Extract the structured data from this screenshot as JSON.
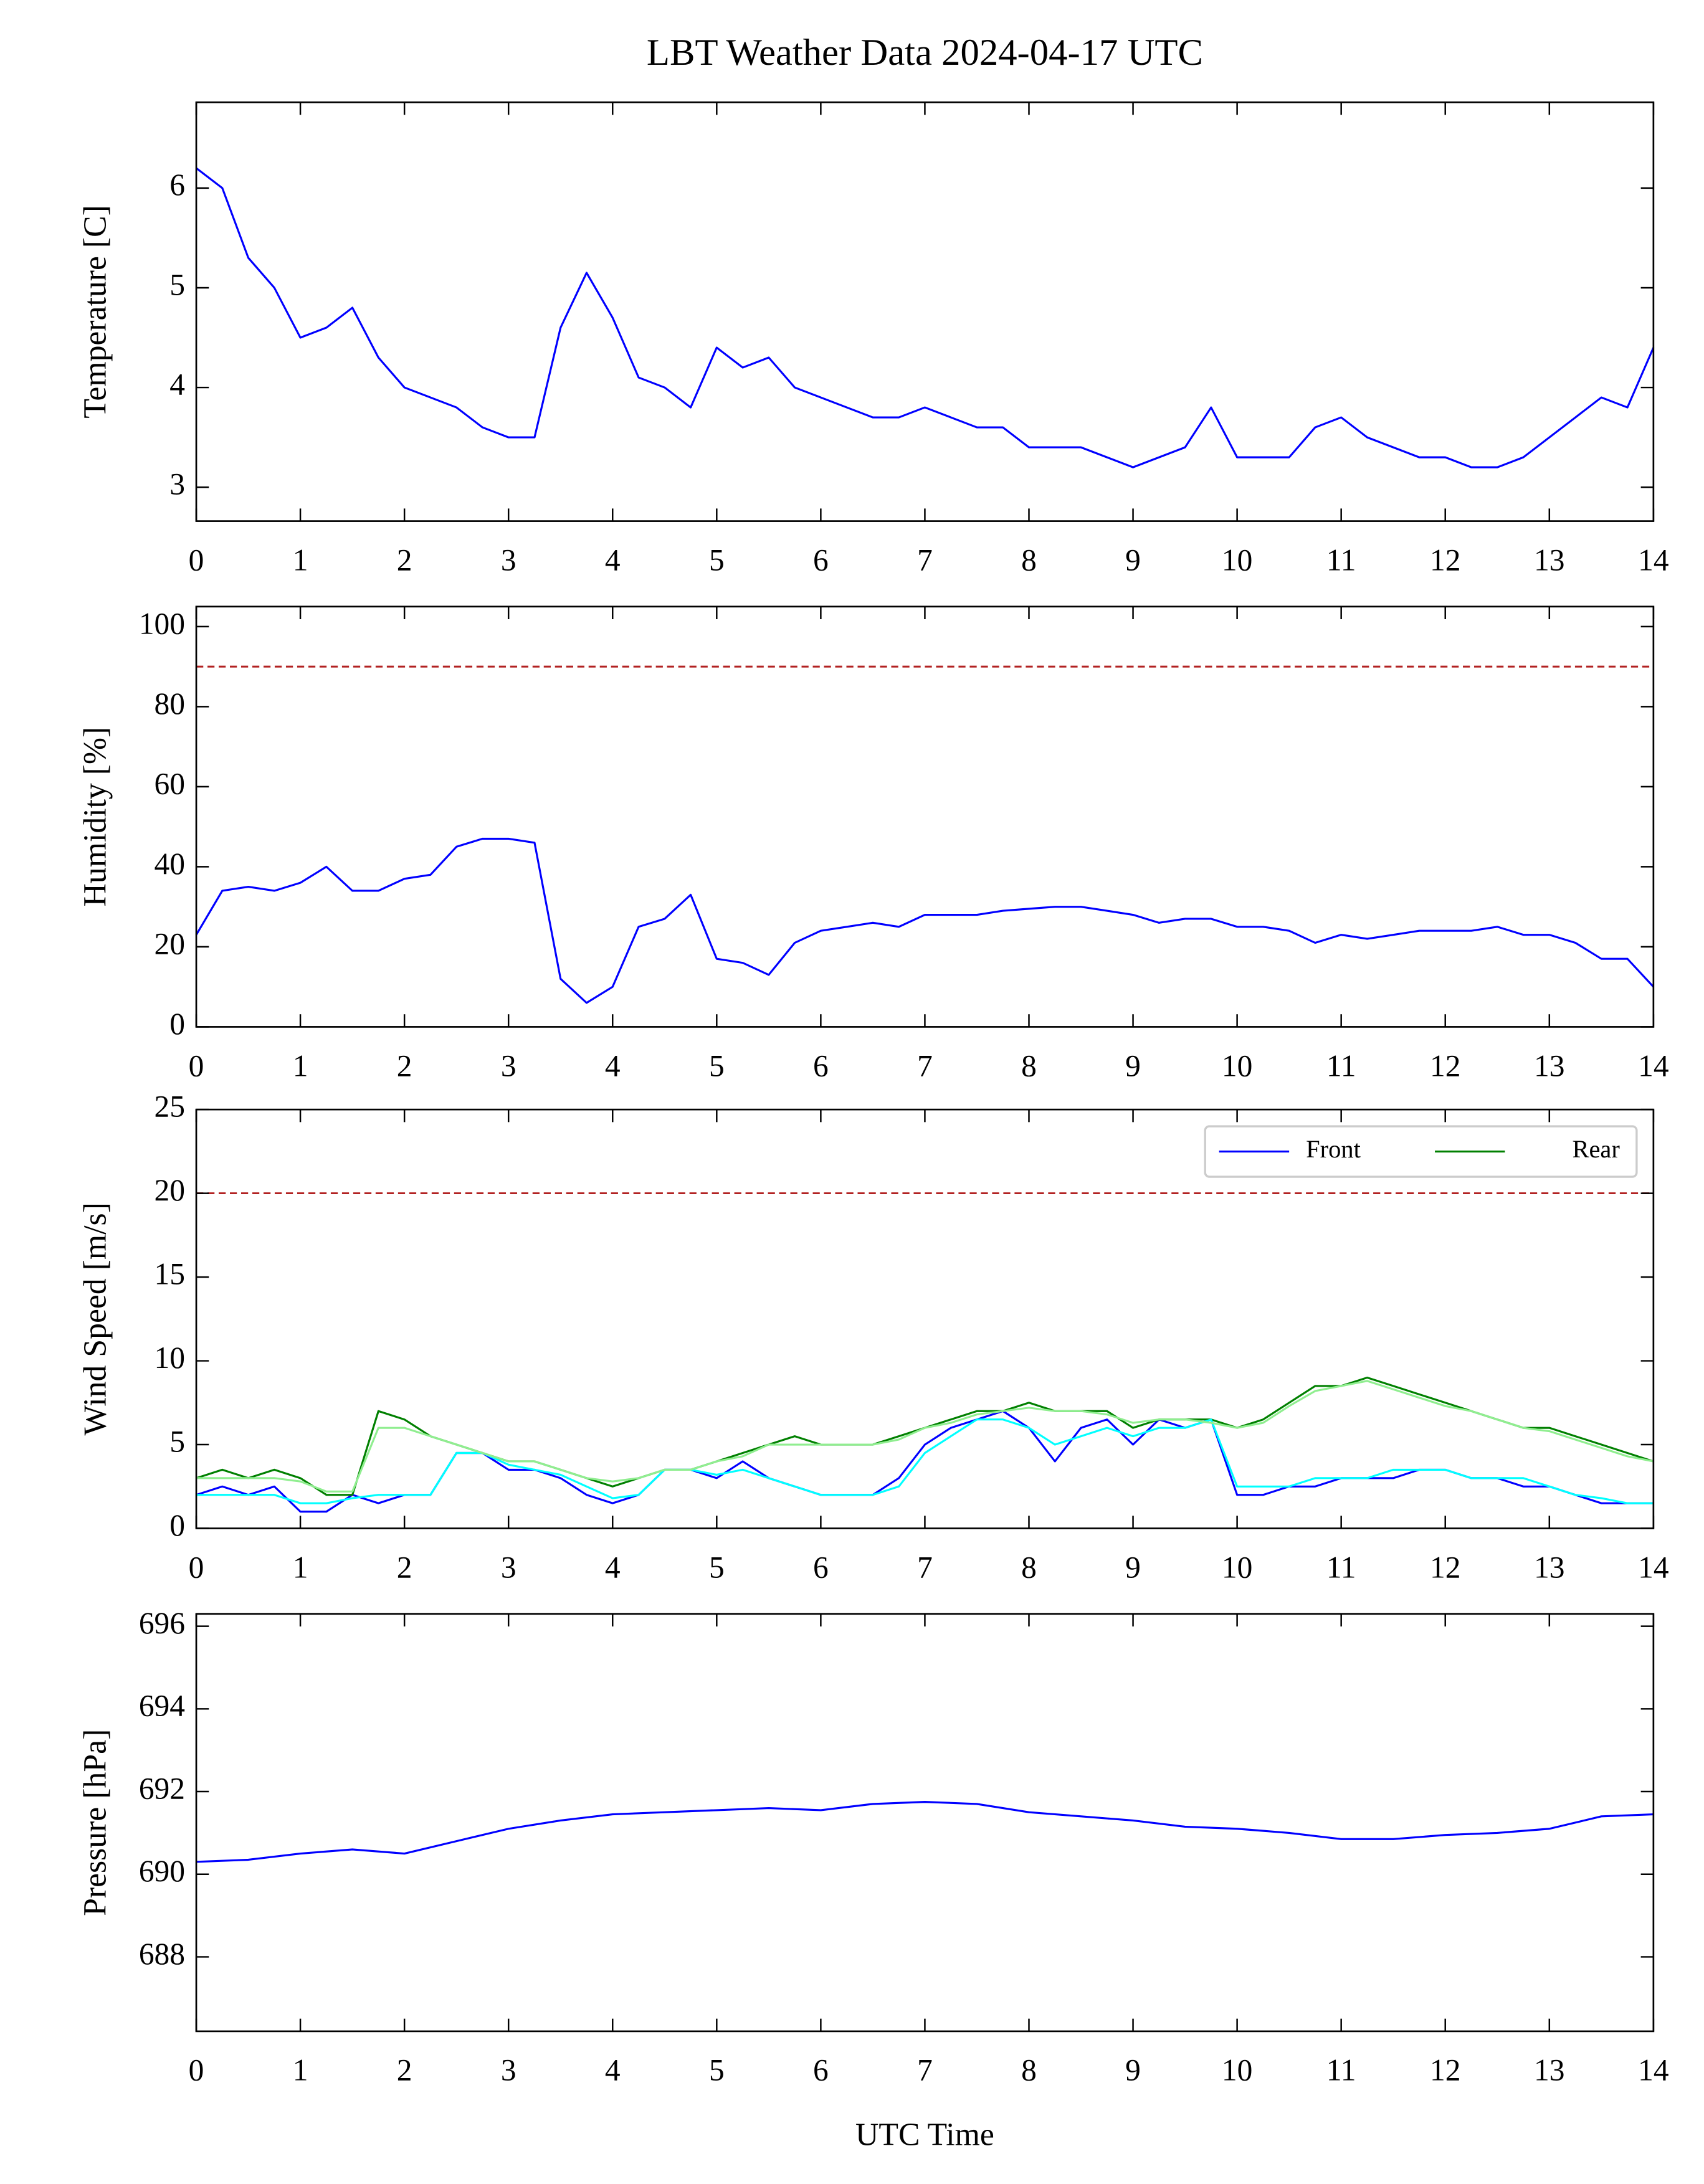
{
  "chart_data": [
    {
      "type": "line",
      "title": "LBT Weather Data 2024-04-17 UTC",
      "ylabel": "Temperature [C]",
      "x": [
        0,
        0.25,
        0.5,
        0.75,
        1,
        1.25,
        1.5,
        1.75,
        2,
        2.25,
        2.5,
        2.75,
        3,
        3.25,
        3.5,
        3.75,
        4,
        4.25,
        4.5,
        4.75,
        5,
        5.25,
        5.5,
        5.75,
        6,
        6.25,
        6.5,
        6.75,
        7,
        7.25,
        7.5,
        7.75,
        8,
        8.25,
        8.5,
        8.75,
        9,
        9.25,
        9.5,
        9.75,
        10,
        10.25,
        10.5,
        10.75,
        11,
        11.25,
        11.5,
        11.75,
        12,
        12.25,
        12.5,
        12.75,
        13,
        13.25,
        13.5,
        13.75,
        14
      ],
      "series": [
        {
          "color": "#0000ff",
          "values": [
            6.2,
            6.0,
            5.3,
            5.0,
            4.5,
            4.6,
            4.8,
            4.3,
            4.0,
            3.9,
            3.8,
            3.6,
            3.5,
            3.5,
            4.6,
            5.15,
            4.7,
            4.1,
            4.0,
            3.8,
            4.4,
            4.2,
            4.3,
            4.0,
            3.9,
            3.8,
            3.7,
            3.7,
            3.8,
            3.7,
            3.6,
            3.6,
            3.4,
            3.4,
            3.4,
            3.3,
            3.2,
            3.3,
            3.4,
            3.8,
            3.3,
            3.3,
            3.3,
            3.6,
            3.7,
            3.5,
            3.4,
            3.3,
            3.3,
            3.2,
            3.2,
            3.3,
            3.5,
            3.7,
            3.9,
            3.8,
            4.4
          ]
        }
      ],
      "xlim": [
        0,
        14
      ],
      "xticks": [
        0,
        1,
        2,
        3,
        4,
        5,
        6,
        7,
        8,
        9,
        10,
        11,
        12,
        13,
        14
      ],
      "ylim": [
        2.66,
        6.86
      ],
      "yticks": [
        3,
        4,
        5,
        6
      ]
    },
    {
      "type": "line",
      "ylabel": "Humidity [%]",
      "x": [
        0,
        0.25,
        0.5,
        0.75,
        1,
        1.25,
        1.5,
        1.75,
        2,
        2.25,
        2.5,
        2.75,
        3,
        3.25,
        3.5,
        3.75,
        4,
        4.25,
        4.5,
        4.75,
        5,
        5.25,
        5.5,
        5.75,
        6,
        6.25,
        6.5,
        6.75,
        7,
        7.25,
        7.5,
        7.75,
        8,
        8.25,
        8.5,
        8.75,
        9,
        9.25,
        9.5,
        9.75,
        10,
        10.25,
        10.5,
        10.75,
        11,
        11.25,
        11.5,
        11.75,
        12,
        12.25,
        12.5,
        12.75,
        13,
        13.25,
        13.5,
        13.75,
        14
      ],
      "series": [
        {
          "color": "#0000ff",
          "values": [
            23,
            34,
            35,
            34,
            36,
            40,
            34,
            34,
            37,
            38,
            45,
            47,
            47,
            46,
            12,
            6,
            10,
            25,
            27,
            33,
            17,
            16,
            13,
            21,
            24,
            25,
            26,
            25,
            28,
            28,
            28,
            29,
            29.5,
            30,
            30,
            29,
            28,
            26,
            27,
            27,
            25,
            25,
            24,
            21,
            23,
            22,
            23,
            24,
            24,
            24,
            25,
            23,
            23,
            21,
            17,
            17,
            10
          ]
        }
      ],
      "hlines": [
        {
          "value": 90,
          "color": "#b22222"
        }
      ],
      "xlim": [
        0,
        14
      ],
      "xticks": [
        0,
        1,
        2,
        3,
        4,
        5,
        6,
        7,
        8,
        9,
        10,
        11,
        12,
        13,
        14
      ],
      "ylim": [
        0,
        105
      ],
      "yticks": [
        0,
        20,
        40,
        60,
        80,
        100
      ]
    },
    {
      "type": "line",
      "ylabel": "Wind Speed [m/s]",
      "legend": "upper right",
      "x": [
        0,
        0.25,
        0.5,
        0.75,
        1,
        1.25,
        1.5,
        1.75,
        2,
        2.25,
        2.5,
        2.75,
        3,
        3.25,
        3.5,
        3.75,
        4,
        4.25,
        4.5,
        4.75,
        5,
        5.25,
        5.5,
        5.75,
        6,
        6.25,
        6.5,
        6.75,
        7,
        7.25,
        7.5,
        7.75,
        8,
        8.25,
        8.5,
        8.75,
        9,
        9.25,
        9.5,
        9.75,
        10,
        10.25,
        10.5,
        10.75,
        11,
        11.25,
        11.5,
        11.75,
        12,
        12.25,
        12.5,
        12.75,
        13,
        13.25,
        13.5,
        13.75,
        14
      ],
      "series": [
        {
          "name": "Front",
          "color": "#0000ff",
          "values": [
            2,
            2.5,
            2,
            2.5,
            1,
            1,
            2,
            1.5,
            2,
            2,
            4.5,
            4.5,
            3.5,
            3.5,
            3,
            2,
            1.5,
            2,
            3.5,
            3.5,
            3,
            4,
            3,
            2.5,
            2,
            2,
            2,
            3,
            5,
            6,
            6.5,
            7,
            6,
            4,
            6,
            6.5,
            5,
            6.5,
            6,
            6.5,
            2,
            2,
            2.5,
            2.5,
            3,
            3,
            3,
            3.5,
            3.5,
            3,
            3,
            2.5,
            2.5,
            2,
            1.5,
            1.5,
            1.5
          ]
        },
        {
          "name": "Rear",
          "color": "#008000",
          "values": [
            3,
            3.5,
            3,
            3.5,
            3,
            2,
            2,
            7,
            6.5,
            5.5,
            5,
            4.5,
            4,
            4,
            3.5,
            3,
            2.5,
            3,
            3.5,
            3.5,
            4,
            4.5,
            5,
            5.5,
            5,
            5,
            5,
            5.5,
            6,
            6.5,
            7,
            7,
            7.5,
            7,
            7,
            7,
            6,
            6.5,
            6.5,
            6.5,
            6,
            6.5,
            7.5,
            8.5,
            8.5,
            9,
            8.5,
            8,
            7.5,
            7,
            6.5,
            6,
            6,
            5.5,
            5,
            4.5,
            4
          ]
        },
        {
          "color": "#00ffff",
          "values": [
            2,
            2,
            2,
            2,
            1.5,
            1.5,
            1.8,
            2,
            2,
            2,
            4.5,
            4.5,
            3.8,
            3.5,
            3.2,
            2.5,
            1.8,
            2,
            3.5,
            3.5,
            3.2,
            3.5,
            3,
            2.5,
            2,
            2,
            2,
            2.5,
            4.5,
            5.5,
            6.5,
            6.5,
            6,
            5,
            5.5,
            6,
            5.5,
            6,
            6,
            6.5,
            2.5,
            2.5,
            2.5,
            3,
            3,
            3,
            3.5,
            3.5,
            3.5,
            3,
            3,
            3,
            2.5,
            2,
            1.8,
            1.5,
            1.5
          ]
        },
        {
          "color": "#90ee90",
          "values": [
            3,
            3,
            3,
            3,
            2.8,
            2.2,
            2.2,
            6,
            6,
            5.5,
            5,
            4.5,
            4,
            4,
            3.5,
            3,
            2.8,
            3,
            3.5,
            3.5,
            4,
            4.3,
            5,
            5,
            5,
            5,
            5,
            5.3,
            6,
            6.3,
            6.8,
            7,
            7.2,
            7,
            7,
            6.8,
            6.3,
            6.5,
            6.5,
            6.3,
            6,
            6.3,
            7.3,
            8.2,
            8.5,
            8.8,
            8.3,
            7.8,
            7.3,
            7,
            6.5,
            6,
            5.8,
            5.3,
            4.8,
            4.3,
            4
          ]
        }
      ],
      "hlines": [
        {
          "value": 20,
          "color": "#b22222"
        }
      ],
      "xlim": [
        0,
        14
      ],
      "xticks": [
        0,
        1,
        2,
        3,
        4,
        5,
        6,
        7,
        8,
        9,
        10,
        11,
        12,
        13,
        14
      ],
      "ylim": [
        0,
        25
      ],
      "yticks": [
        0,
        5,
        10,
        15,
        20,
        25
      ]
    },
    {
      "type": "line",
      "ylabel": "Pressure [hPa]",
      "xlabel": "UTC Time",
      "x": [
        0,
        0.5,
        1,
        1.5,
        2,
        2.5,
        3,
        3.5,
        4,
        4.5,
        5,
        5.5,
        6,
        6.5,
        7,
        7.5,
        8,
        8.5,
        9,
        9.5,
        10,
        10.5,
        11,
        11.5,
        12,
        12.5,
        13,
        13.5,
        14
      ],
      "series": [
        {
          "color": "#0000ff",
          "values": [
            690.3,
            690.35,
            690.5,
            690.6,
            690.5,
            690.8,
            691.1,
            691.3,
            691.45,
            691.5,
            691.55,
            691.6,
            691.55,
            691.7,
            691.75,
            691.7,
            691.5,
            691.4,
            691.3,
            691.15,
            691.1,
            691.0,
            690.85,
            690.85,
            690.95,
            691.0,
            691.1,
            691.4,
            691.45
          ]
        }
      ],
      "xlim": [
        0,
        14
      ],
      "xticks": [
        0,
        1,
        2,
        3,
        4,
        5,
        6,
        7,
        8,
        9,
        10,
        11,
        12,
        13,
        14
      ],
      "ylim": [
        686.2,
        696.3
      ],
      "yticks": [
        688,
        690,
        692,
        694,
        696
      ]
    }
  ]
}
